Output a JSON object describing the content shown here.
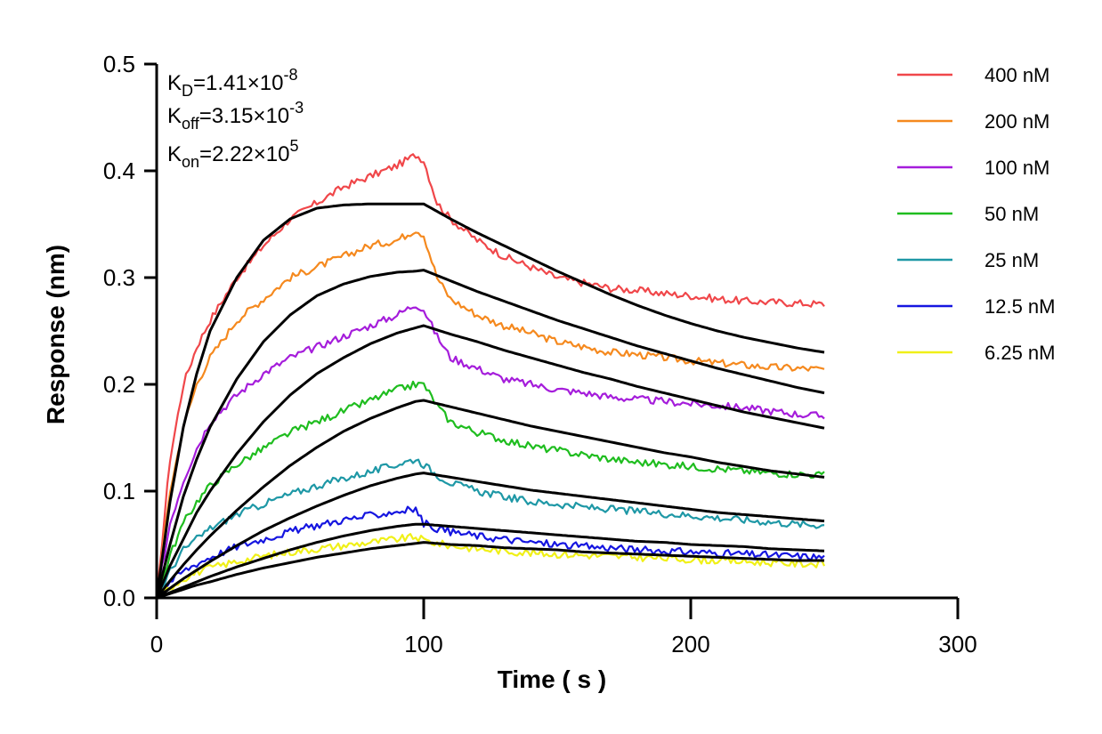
{
  "chart_data": {
    "type": "line",
    "title": "",
    "xlabel": "Time ( s )",
    "ylabel": "Response (nm)",
    "xlim": [
      0,
      300
    ],
    "ylim": [
      0,
      0.5
    ],
    "x_ticks": [
      0,
      100,
      200,
      300
    ],
    "x_tick_labels": [
      "0",
      "100",
      "200",
      "300"
    ],
    "y_ticks": [
      0,
      0.1,
      0.2,
      0.3,
      0.4,
      0.5
    ],
    "y_tick_labels": [
      "0.0",
      "0.1",
      "0.2",
      "0.3",
      "0.4",
      "0.5"
    ],
    "grid": false,
    "legend_position": "top-right",
    "kinetics": [
      {
        "base": "K",
        "sub": "D",
        "value": "=1.41×10",
        "exp": "-8"
      },
      {
        "base": "K",
        "sub": "off",
        "value": "=3.15×10",
        "exp": "-3"
      },
      {
        "base": "K",
        "sub": "on",
        "value": "=2.22×10",
        "exp": "5"
      }
    ],
    "fit_color": "#000000",
    "series": [
      {
        "name": "400 nM",
        "color": "#f0474a",
        "x": [
          0,
          5,
          10,
          15,
          20,
          30,
          40,
          50,
          60,
          70,
          80,
          90,
          97,
          100,
          105,
          110,
          120,
          130,
          140,
          150,
          160,
          170,
          180,
          190,
          200,
          210,
          220,
          230,
          240,
          250
        ],
        "y": [
          0,
          0.13,
          0.2,
          0.235,
          0.26,
          0.3,
          0.33,
          0.355,
          0.37,
          0.385,
          0.395,
          0.405,
          0.415,
          0.41,
          0.37,
          0.355,
          0.335,
          0.32,
          0.31,
          0.3,
          0.295,
          0.29,
          0.288,
          0.285,
          0.283,
          0.28,
          0.278,
          0.277,
          0.276,
          0.275
        ],
        "fit": [
          0,
          0.09,
          0.16,
          0.21,
          0.25,
          0.3,
          0.335,
          0.355,
          0.365,
          0.368,
          0.369,
          0.369,
          0.369,
          0.369,
          0.362,
          0.355,
          0.342,
          0.33,
          0.318,
          0.306,
          0.295,
          0.284,
          0.274,
          0.265,
          0.257,
          0.25,
          0.244,
          0.239,
          0.234,
          0.23
        ]
      },
      {
        "name": "200 nM",
        "color": "#f5891e",
        "x": [
          0,
          5,
          10,
          15,
          20,
          30,
          40,
          50,
          60,
          70,
          80,
          90,
          97,
          100,
          105,
          110,
          120,
          130,
          140,
          150,
          160,
          170,
          180,
          190,
          200,
          210,
          220,
          230,
          240,
          250
        ],
        "y": [
          0,
          0.1,
          0.16,
          0.2,
          0.225,
          0.26,
          0.28,
          0.3,
          0.31,
          0.32,
          0.33,
          0.335,
          0.345,
          0.34,
          0.3,
          0.28,
          0.265,
          0.255,
          0.248,
          0.24,
          0.235,
          0.23,
          0.228,
          0.225,
          0.222,
          0.22,
          0.218,
          0.216,
          0.215,
          0.214
        ],
        "fit": [
          0,
          0.05,
          0.095,
          0.13,
          0.16,
          0.205,
          0.24,
          0.265,
          0.283,
          0.294,
          0.301,
          0.305,
          0.306,
          0.307,
          0.302,
          0.297,
          0.287,
          0.278,
          0.269,
          0.26,
          0.252,
          0.244,
          0.236,
          0.229,
          0.222,
          0.215,
          0.209,
          0.203,
          0.197,
          0.192
        ]
      },
      {
        "name": "100 nM",
        "color": "#a51ddb",
        "x": [
          0,
          5,
          10,
          15,
          20,
          30,
          40,
          50,
          60,
          70,
          80,
          90,
          97,
          100,
          105,
          110,
          120,
          130,
          140,
          150,
          160,
          170,
          180,
          190,
          200,
          210,
          220,
          230,
          240,
          250
        ],
        "y": [
          0,
          0.07,
          0.11,
          0.14,
          0.165,
          0.19,
          0.21,
          0.225,
          0.235,
          0.245,
          0.255,
          0.265,
          0.275,
          0.27,
          0.245,
          0.225,
          0.215,
          0.205,
          0.2,
          0.195,
          0.192,
          0.188,
          0.186,
          0.184,
          0.182,
          0.18,
          0.178,
          0.175,
          0.172,
          0.17
        ],
        "fit": [
          0,
          0.03,
          0.055,
          0.08,
          0.1,
          0.135,
          0.165,
          0.19,
          0.21,
          0.225,
          0.238,
          0.248,
          0.253,
          0.255,
          0.251,
          0.247,
          0.24,
          0.232,
          0.225,
          0.218,
          0.211,
          0.205,
          0.198,
          0.192,
          0.186,
          0.18,
          0.174,
          0.169,
          0.164,
          0.159
        ]
      },
      {
        "name": "50 nM",
        "color": "#1fbd1f",
        "x": [
          0,
          5,
          10,
          15,
          20,
          30,
          40,
          50,
          60,
          70,
          80,
          90,
          97,
          100,
          105,
          110,
          120,
          130,
          140,
          150,
          160,
          170,
          180,
          190,
          200,
          210,
          220,
          230,
          240,
          250
        ],
        "y": [
          0,
          0.04,
          0.07,
          0.09,
          0.105,
          0.125,
          0.14,
          0.155,
          0.165,
          0.175,
          0.185,
          0.195,
          0.2,
          0.2,
          0.18,
          0.165,
          0.155,
          0.148,
          0.142,
          0.138,
          0.134,
          0.13,
          0.127,
          0.125,
          0.123,
          0.121,
          0.119,
          0.117,
          0.116,
          0.115
        ],
        "fit": [
          0,
          0.016,
          0.031,
          0.045,
          0.058,
          0.082,
          0.104,
          0.124,
          0.141,
          0.156,
          0.168,
          0.178,
          0.184,
          0.185,
          0.182,
          0.179,
          0.173,
          0.167,
          0.161,
          0.156,
          0.151,
          0.146,
          0.141,
          0.136,
          0.132,
          0.127,
          0.123,
          0.119,
          0.116,
          0.113
        ]
      },
      {
        "name": "25 nM",
        "color": "#1e98a6",
        "x": [
          0,
          5,
          10,
          15,
          20,
          30,
          40,
          50,
          60,
          70,
          80,
          90,
          97,
          100,
          105,
          110,
          120,
          130,
          140,
          150,
          160,
          170,
          180,
          190,
          200,
          210,
          220,
          230,
          240,
          250
        ],
        "y": [
          0,
          0.025,
          0.045,
          0.055,
          0.065,
          0.078,
          0.088,
          0.097,
          0.105,
          0.112,
          0.118,
          0.125,
          0.13,
          0.125,
          0.115,
          0.108,
          0.1,
          0.095,
          0.09,
          0.088,
          0.085,
          0.083,
          0.081,
          0.079,
          0.077,
          0.075,
          0.073,
          0.071,
          0.069,
          0.068
        ],
        "fit": [
          0,
          0.009,
          0.018,
          0.026,
          0.034,
          0.049,
          0.063,
          0.075,
          0.086,
          0.096,
          0.105,
          0.112,
          0.116,
          0.117,
          0.115,
          0.113,
          0.109,
          0.105,
          0.101,
          0.098,
          0.095,
          0.092,
          0.089,
          0.086,
          0.083,
          0.08,
          0.078,
          0.076,
          0.074,
          0.072
        ]
      },
      {
        "name": "12.5 nM",
        "color": "#1515e0",
        "x": [
          0,
          5,
          10,
          15,
          20,
          30,
          40,
          50,
          60,
          70,
          80,
          90,
          97,
          100,
          105,
          110,
          120,
          130,
          140,
          150,
          160,
          170,
          180,
          190,
          200,
          210,
          220,
          230,
          240,
          250
        ],
        "y": [
          0,
          0.015,
          0.025,
          0.032,
          0.038,
          0.048,
          0.055,
          0.062,
          0.068,
          0.073,
          0.077,
          0.081,
          0.083,
          0.07,
          0.065,
          0.062,
          0.058,
          0.055,
          0.052,
          0.05,
          0.048,
          0.047,
          0.045,
          0.044,
          0.043,
          0.042,
          0.041,
          0.04,
          0.039,
          0.038
        ],
        "fit": [
          0,
          0.005,
          0.01,
          0.015,
          0.02,
          0.029,
          0.037,
          0.045,
          0.052,
          0.058,
          0.063,
          0.067,
          0.069,
          0.069,
          0.068,
          0.067,
          0.065,
          0.063,
          0.061,
          0.059,
          0.057,
          0.055,
          0.053,
          0.052,
          0.05,
          0.049,
          0.048,
          0.046,
          0.045,
          0.044
        ]
      },
      {
        "name": "6.25 nM",
        "color": "#f0f018",
        "x": [
          0,
          5,
          10,
          15,
          20,
          30,
          40,
          50,
          60,
          70,
          80,
          90,
          97,
          100,
          105,
          110,
          120,
          130,
          140,
          150,
          160,
          170,
          180,
          190,
          200,
          210,
          220,
          230,
          240,
          250
        ],
        "y": [
          0,
          0.01,
          0.018,
          0.024,
          0.028,
          0.034,
          0.039,
          0.043,
          0.046,
          0.049,
          0.052,
          0.055,
          0.057,
          0.054,
          0.051,
          0.049,
          0.046,
          0.044,
          0.042,
          0.041,
          0.04,
          0.039,
          0.038,
          0.037,
          0.036,
          0.035,
          0.034,
          0.033,
          0.032,
          0.032
        ],
        "fit": [
          0,
          0.004,
          0.008,
          0.012,
          0.015,
          0.022,
          0.028,
          0.033,
          0.038,
          0.042,
          0.046,
          0.049,
          0.051,
          0.052,
          0.051,
          0.05,
          0.049,
          0.047,
          0.046,
          0.045,
          0.043,
          0.042,
          0.041,
          0.04,
          0.039,
          0.038,
          0.037,
          0.036,
          0.035,
          0.035
        ]
      }
    ]
  }
}
